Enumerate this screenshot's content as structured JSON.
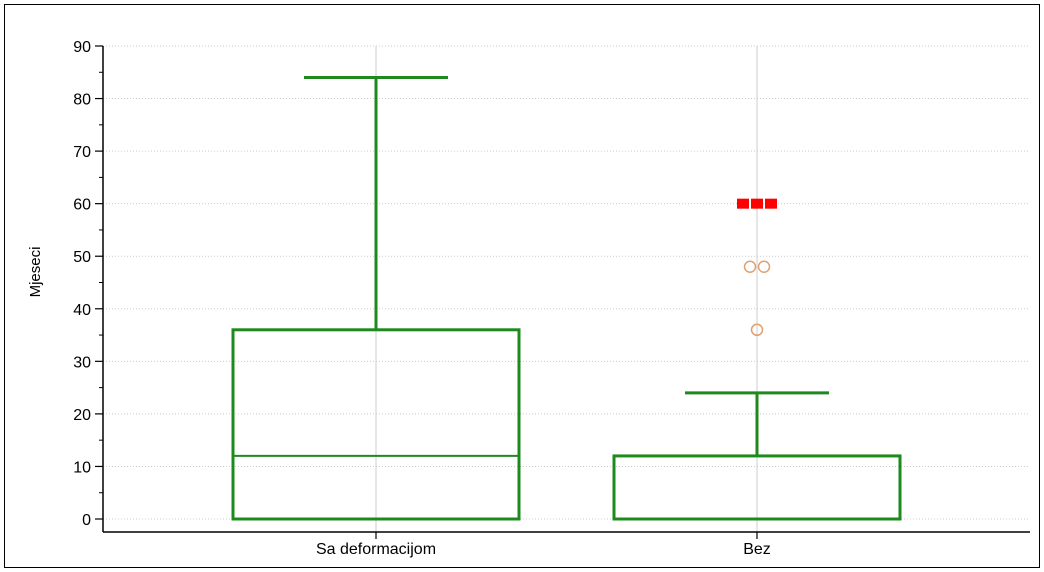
{
  "chart_data": {
    "type": "box",
    "ylabel": "Mjeseci",
    "xlabel": "",
    "ylim": [
      0,
      90
    ],
    "y_ticks": [
      "0",
      "10",
      "20",
      "30",
      "40",
      "50",
      "60",
      "70",
      "80",
      "90"
    ],
    "grid": true,
    "categories": [
      "Sa deformacijom",
      "Bez"
    ],
    "boxes": [
      {
        "category": "Sa deformacijom",
        "min": 0,
        "q1": 0,
        "median": 12,
        "q3": 36,
        "max": 84,
        "outliers": [],
        "far_outliers": []
      },
      {
        "category": "Bez",
        "min": 0,
        "q1": 0,
        "median": 12,
        "q3": 12,
        "max": 24,
        "outliers": [
          36,
          48,
          48
        ],
        "far_outliers": [
          60,
          60,
          60
        ]
      }
    ],
    "colors": {
      "box": "#1e8a1e",
      "outlier": "#e0a070",
      "far_outlier": "#ff0000",
      "grid": "#cccccc"
    }
  }
}
